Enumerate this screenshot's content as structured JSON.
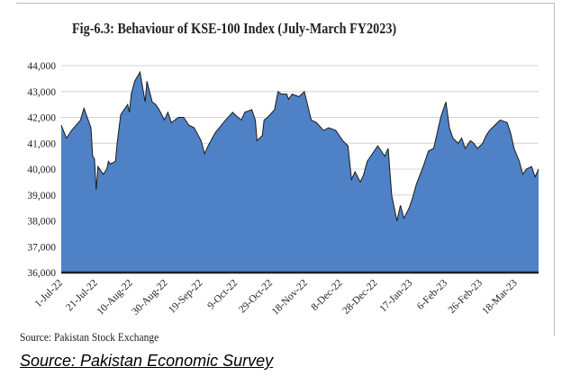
{
  "figure": {
    "title": "Fig-6.3: Behaviour of KSE-100 Index (July-March FY2023)",
    "source": "Source: Pakistan Stock Exchange",
    "survey_source": "Source: Pakistan Economic Survey"
  },
  "chart_data": {
    "type": "area",
    "title": "Fig-6.3: Behaviour of KSE-100 Index (July-March FY2023)",
    "xlabel": "",
    "ylabel": "",
    "ylim": [
      36000,
      44000
    ],
    "yticks": [
      36000,
      37000,
      38000,
      39000,
      40000,
      41000,
      42000,
      43000,
      44000
    ],
    "ytick_labels": [
      "36,000",
      "37,000",
      "38,000",
      "39,000",
      "40,000",
      "41,000",
      "42,000",
      "43,000",
      "44,000"
    ],
    "xtick_labels": [
      "1-Jul-22",
      "21-Jul-22",
      "10-Aug-22",
      "30-Aug-22",
      "19-Sep-22",
      "9-Oct-22",
      "29-Oct-22",
      "18-Nov-22",
      "8-Dec-22",
      "28-Dec-22",
      "17-Jan-23",
      "6-Feb-23",
      "26-Feb-23",
      "18-Mar-23"
    ],
    "grid": true,
    "fill_color": "#4f81c7",
    "line_color": "#1a1a1a",
    "x_start": "2022-07-01",
    "x_end": "2023-03-31",
    "series": [
      {
        "values": [
          [
            "2022-07-01",
            41700
          ],
          [
            "2022-07-04",
            41200
          ],
          [
            "2022-07-07",
            41500
          ],
          [
            "2022-07-12",
            41900
          ],
          [
            "2022-07-14",
            42350
          ],
          [
            "2022-07-18",
            41600
          ],
          [
            "2022-07-19",
            40500
          ],
          [
            "2022-07-20",
            40400
          ],
          [
            "2022-07-21",
            39200
          ],
          [
            "2022-07-22",
            40100
          ],
          [
            "2022-07-25",
            39800
          ],
          [
            "2022-07-27",
            40000
          ],
          [
            "2022-07-28",
            40300
          ],
          [
            "2022-07-29",
            40200
          ],
          [
            "2022-08-01",
            40300
          ],
          [
            "2022-08-02",
            41000
          ],
          [
            "2022-08-04",
            42100
          ],
          [
            "2022-08-08",
            42500
          ],
          [
            "2022-08-09",
            42200
          ],
          [
            "2022-08-10",
            42900
          ],
          [
            "2022-08-12",
            43400
          ],
          [
            "2022-08-15",
            43750
          ],
          [
            "2022-08-17",
            43000
          ],
          [
            "2022-08-18",
            42600
          ],
          [
            "2022-08-19",
            43400
          ],
          [
            "2022-08-22",
            42600
          ],
          [
            "2022-08-24",
            42500
          ],
          [
            "2022-08-26",
            42300
          ],
          [
            "2022-08-29",
            41900
          ],
          [
            "2022-08-31",
            42200
          ],
          [
            "2022-09-02",
            41800
          ],
          [
            "2022-09-06",
            42000
          ],
          [
            "2022-09-09",
            42000
          ],
          [
            "2022-09-12",
            41700
          ],
          [
            "2022-09-15",
            41600
          ],
          [
            "2022-09-19",
            41100
          ],
          [
            "2022-09-21",
            40600
          ],
          [
            "2022-09-23",
            40900
          ],
          [
            "2022-09-27",
            41400
          ],
          [
            "2022-10-03",
            41900
          ],
          [
            "2022-10-07",
            42200
          ],
          [
            "2022-10-10",
            42000
          ],
          [
            "2022-10-12",
            41900
          ],
          [
            "2022-10-14",
            42200
          ],
          [
            "2022-10-18",
            42300
          ],
          [
            "2022-10-20",
            41900
          ],
          [
            "2022-10-21",
            41100
          ],
          [
            "2022-10-24",
            41300
          ],
          [
            "2022-10-25",
            41900
          ],
          [
            "2022-10-27",
            42000
          ],
          [
            "2022-10-31",
            42300
          ],
          [
            "2022-11-02",
            43000
          ],
          [
            "2022-11-04",
            42900
          ],
          [
            "2022-11-07",
            42900
          ],
          [
            "2022-11-08",
            42700
          ],
          [
            "2022-11-10",
            42900
          ],
          [
            "2022-11-14",
            42800
          ],
          [
            "2022-11-17",
            43000
          ],
          [
            "2022-11-21",
            41900
          ],
          [
            "2022-11-24",
            41800
          ],
          [
            "2022-11-28",
            41500
          ],
          [
            "2022-12-01",
            41600
          ],
          [
            "2022-12-05",
            41500
          ],
          [
            "2022-12-07",
            41300
          ],
          [
            "2022-12-09",
            41100
          ],
          [
            "2022-12-12",
            40900
          ],
          [
            "2022-12-14",
            39600
          ],
          [
            "2022-12-16",
            39900
          ],
          [
            "2022-12-19",
            39500
          ],
          [
            "2022-12-21",
            39800
          ],
          [
            "2022-12-23",
            40300
          ],
          [
            "2022-12-27",
            40700
          ],
          [
            "2022-12-29",
            40900
          ],
          [
            "2023-01-02",
            40500
          ],
          [
            "2023-01-04",
            40800
          ],
          [
            "2023-01-06",
            39000
          ],
          [
            "2023-01-09",
            38000
          ],
          [
            "2023-01-11",
            38600
          ],
          [
            "2023-01-13",
            38100
          ],
          [
            "2023-01-16",
            38500
          ],
          [
            "2023-01-18",
            38900
          ],
          [
            "2023-01-20",
            39400
          ],
          [
            "2023-01-24",
            40100
          ],
          [
            "2023-01-27",
            40700
          ],
          [
            "2023-01-30",
            40800
          ],
          [
            "2023-02-01",
            41400
          ],
          [
            "2023-02-03",
            42000
          ],
          [
            "2023-02-06",
            42600
          ],
          [
            "2023-02-08",
            41600
          ],
          [
            "2023-02-10",
            41200
          ],
          [
            "2023-02-13",
            41000
          ],
          [
            "2023-02-15",
            41200
          ],
          [
            "2023-02-17",
            40800
          ],
          [
            "2023-02-20",
            41100
          ],
          [
            "2023-02-22",
            41000
          ],
          [
            "2023-02-24",
            40800
          ],
          [
            "2023-02-27",
            41000
          ],
          [
            "2023-03-01",
            41300
          ],
          [
            "2023-03-03",
            41500
          ],
          [
            "2023-03-06",
            41700
          ],
          [
            "2023-03-09",
            41900
          ],
          [
            "2023-03-13",
            41800
          ],
          [
            "2023-03-15",
            41400
          ],
          [
            "2023-03-17",
            40800
          ],
          [
            "2023-03-20",
            40300
          ],
          [
            "2023-03-22",
            39800
          ],
          [
            "2023-03-24",
            40000
          ],
          [
            "2023-03-27",
            40100
          ],
          [
            "2023-03-29",
            39700
          ],
          [
            "2023-03-31",
            40000
          ]
        ]
      }
    ]
  }
}
